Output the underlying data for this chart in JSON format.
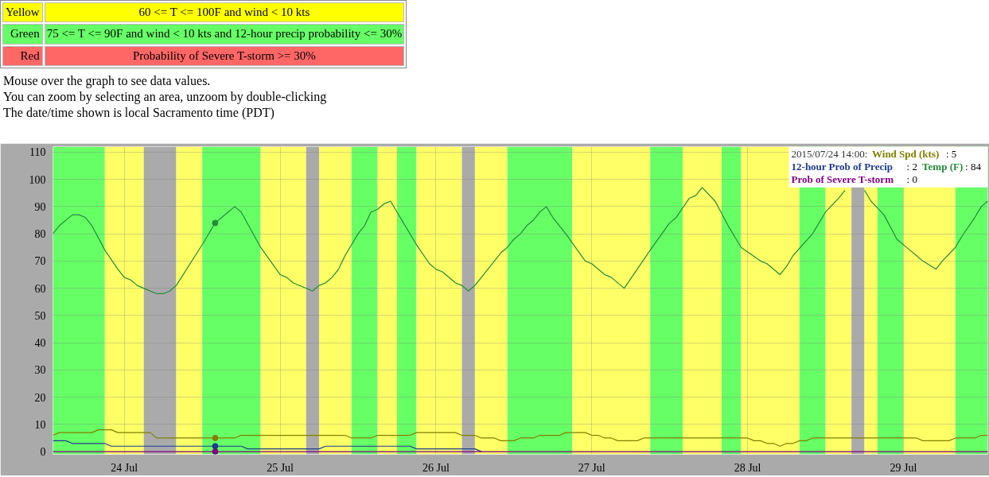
{
  "chart_data": {
    "type": "line",
    "annotations": [
      "Yellow",
      "60 <= T <= 100F and wind < 10 kts",
      "Green",
      "75 <= T <= 90F and wind < 10 kts and 12-hour precip probability <= 30%",
      "Red",
      "Probability of Severe T-storm >= 30%",
      "Mouse over the graph to see data values.",
      "You can zoom by selecting an area, unzoom by double-clicking",
      "The date/time shown is local Sacramento time (PDT)",
      "2015/07/24 14:00:",
      ": 5",
      ": 2",
      ": 84",
      ": 0"
    ],
    "xlim": [
      "2015-07-23T13:00",
      "2015-07-29T13:00"
    ],
    "xticks": [
      {
        "value": "2015-07-24",
        "label": "24 Jul"
      },
      {
        "value": "2015-07-25",
        "label": "25 Jul"
      },
      {
        "value": "2015-07-26",
        "label": "26 Jul"
      },
      {
        "value": "2015-07-27",
        "label": "27 Jul"
      },
      {
        "value": "2015-07-28",
        "label": "28 Jul"
      },
      {
        "value": "2015-07-29",
        "label": "29 Jul"
      }
    ],
    "ylim": [
      -1,
      112
    ],
    "yticks": [
      0,
      10,
      20,
      30,
      40,
      50,
      60,
      70,
      80,
      90,
      100,
      110
    ],
    "grid": true,
    "legend": "top right",
    "bands": [
      {
        "axis": "x",
        "from": "2015-07-23T13:00",
        "to": "2015-07-23T21:00",
        "color": "#66ff66"
      },
      {
        "axis": "x",
        "from": "2015-07-23T21:00",
        "to": "2015-07-24T03:00",
        "color": "#ffff66"
      },
      {
        "axis": "x",
        "from": "2015-07-24T03:00",
        "to": "2015-07-24T08:00",
        "color": "#aaaaaa"
      },
      {
        "axis": "x",
        "from": "2015-07-24T08:00",
        "to": "2015-07-24T12:00",
        "color": "#ffff66"
      },
      {
        "axis": "x",
        "from": "2015-07-24T12:00",
        "to": "2015-07-24T21:00",
        "color": "#66ff66"
      },
      {
        "axis": "x",
        "from": "2015-07-24T21:00",
        "to": "2015-07-25T04:00",
        "color": "#ffff66"
      },
      {
        "axis": "x",
        "from": "2015-07-25T04:00",
        "to": "2015-07-25T06:00",
        "color": "#aaaaaa"
      },
      {
        "axis": "x",
        "from": "2015-07-25T06:00",
        "to": "2015-07-25T11:00",
        "color": "#ffff66"
      },
      {
        "axis": "x",
        "from": "2015-07-25T11:00",
        "to": "2015-07-25T15:00",
        "color": "#66ff66"
      },
      {
        "axis": "x",
        "from": "2015-07-25T15:00",
        "to": "2015-07-25T18:00",
        "color": "#ffff66"
      },
      {
        "axis": "x",
        "from": "2015-07-25T18:00",
        "to": "2015-07-25T21:00",
        "color": "#66ff66"
      },
      {
        "axis": "x",
        "from": "2015-07-25T21:00",
        "to": "2015-07-26T04:00",
        "color": "#ffff66"
      },
      {
        "axis": "x",
        "from": "2015-07-26T04:00",
        "to": "2015-07-26T06:00",
        "color": "#aaaaaa"
      },
      {
        "axis": "x",
        "from": "2015-07-26T06:00",
        "to": "2015-07-26T11:00",
        "color": "#ffff66"
      },
      {
        "axis": "x",
        "from": "2015-07-26T11:00",
        "to": "2015-07-26T21:00",
        "color": "#66ff66"
      },
      {
        "axis": "x",
        "from": "2015-07-26T21:00",
        "to": "2015-07-27T09:00",
        "color": "#ffff66"
      },
      {
        "axis": "x",
        "from": "2015-07-27T09:00",
        "to": "2015-07-27T14:00",
        "color": "#66ff66"
      },
      {
        "axis": "x",
        "from": "2015-07-27T14:00",
        "to": "2015-07-27T20:00",
        "color": "#ffff66"
      },
      {
        "axis": "x",
        "from": "2015-07-27T20:00",
        "to": "2015-07-27T23:00",
        "color": "#66ff66"
      },
      {
        "axis": "x",
        "from": "2015-07-27T23:00",
        "to": "2015-07-28T08:00",
        "color": "#ffff66"
      },
      {
        "axis": "x",
        "from": "2015-07-28T08:00",
        "to": "2015-07-28T12:00",
        "color": "#66ff66"
      },
      {
        "axis": "x",
        "from": "2015-07-28T12:00",
        "to": "2015-07-28T16:00",
        "color": "#ffff66"
      },
      {
        "axis": "x",
        "from": "2015-07-28T16:00",
        "to": "2015-07-28T18:00",
        "color": "#aaaaaa"
      },
      {
        "axis": "x",
        "from": "2015-07-28T18:00",
        "to": "2015-07-28T20:00",
        "color": "#ffff66"
      },
      {
        "axis": "x",
        "from": "2015-07-28T20:00",
        "to": "2015-07-29T00:00",
        "color": "#66ff66"
      },
      {
        "axis": "x",
        "from": "2015-07-29T00:00",
        "to": "2015-07-29T08:00",
        "color": "#ffff66"
      },
      {
        "axis": "x",
        "from": "2015-07-29T08:00",
        "to": "2015-07-29T13:00",
        "color": "#66ff66"
      }
    ],
    "series": [
      {
        "name": "Wind Spd (kts)",
        "color": "#808000",
        "x": [
          "2015-07-23T13:00",
          "2015-07-23T14:00",
          "2015-07-23T19:00",
          "2015-07-23T20:00",
          "2015-07-23T22:00",
          "2015-07-23T23:00",
          "2015-07-24T04:00",
          "2015-07-24T05:00",
          "2015-07-24T14:00",
          "2015-07-24T17:00",
          "2015-07-24T18:00",
          "2015-07-25T10:00",
          "2015-07-25T11:00",
          "2015-07-25T14:00",
          "2015-07-25T15:00",
          "2015-07-25T20:00",
          "2015-07-25T21:00",
          "2015-07-26T03:00",
          "2015-07-26T04:00",
          "2015-07-26T06:00",
          "2015-07-26T07:00",
          "2015-07-26T09:00",
          "2015-07-26T10:00",
          "2015-07-26T12:00",
          "2015-07-26T13:00",
          "2015-07-26T15:00",
          "2015-07-26T16:00",
          "2015-07-26T19:00",
          "2015-07-26T20:00",
          "2015-07-26T23:00",
          "2015-07-27T00:00",
          "2015-07-27T01:00",
          "2015-07-27T02:00",
          "2015-07-27T03:00",
          "2015-07-27T04:00",
          "2015-07-27T07:00",
          "2015-07-27T08:00",
          "2015-07-28T00:00",
          "2015-07-28T01:00",
          "2015-07-28T02:00",
          "2015-07-28T03:00",
          "2015-07-28T04:00",
          "2015-07-28T05:00",
          "2015-07-28T06:00",
          "2015-07-28T07:00",
          "2015-07-28T08:00",
          "2015-07-28T09:00",
          "2015-07-28T10:00",
          "2015-07-29T02:00",
          "2015-07-29T03:00",
          "2015-07-29T07:00",
          "2015-07-29T08:00",
          "2015-07-29T11:00",
          "2015-07-29T12:00",
          "2015-07-29T13:00"
        ],
        "values": [
          6,
          7,
          7,
          8,
          8,
          7,
          7,
          5,
          5,
          5,
          6,
          6,
          5,
          5,
          6,
          6,
          7,
          7,
          6,
          6,
          5,
          5,
          4,
          4,
          5,
          5,
          6,
          6,
          7,
          7,
          6,
          6,
          5,
          5,
          4,
          4,
          5,
          5,
          4,
          4,
          3,
          3,
          2,
          3,
          3,
          4,
          4,
          5,
          5,
          4,
          4,
          5,
          5,
          6,
          6
        ]
      },
      {
        "name": "12-hour Prob of Precip",
        "color": "#1f3b8f",
        "x": [
          "2015-07-23T13:00",
          "2015-07-23T15:00",
          "2015-07-23T16:00",
          "2015-07-23T21:00",
          "2015-07-23T22:00",
          "2015-07-24T14:00",
          "2015-07-24T18:00",
          "2015-07-24T19:00",
          "2015-07-25T06:00",
          "2015-07-25T07:00",
          "2015-07-25T20:00",
          "2015-07-25T21:00",
          "2015-07-26T06:00",
          "2015-07-26T07:00"
        ],
        "values": [
          4,
          4,
          3,
          3,
          2,
          2,
          2,
          1,
          1,
          2,
          2,
          1,
          1,
          0
        ]
      },
      {
        "name": "Temp (F)",
        "color": "#238b3a",
        "x": [
          "2015-07-23T13:00",
          "2015-07-23T14:00",
          "2015-07-23T16:00",
          "2015-07-23T17:00",
          "2015-07-23T18:00",
          "2015-07-23T19:00",
          "2015-07-23T21:00",
          "2015-07-23T23:00",
          "2015-07-24T00:00",
          "2015-07-24T01:00",
          "2015-07-24T02:00",
          "2015-07-24T03:00",
          "2015-07-24T05:00",
          "2015-07-24T06:00",
          "2015-07-24T07:00",
          "2015-07-24T08:00",
          "2015-07-24T12:00",
          "2015-07-24T14:00",
          "2015-07-24T15:00",
          "2015-07-24T16:00",
          "2015-07-24T17:00",
          "2015-07-24T18:00",
          "2015-07-24T21:00",
          "2015-07-25T00:00",
          "2015-07-25T01:00",
          "2015-07-25T02:00",
          "2015-07-25T05:00",
          "2015-07-25T06:00",
          "2015-07-25T07:00",
          "2015-07-25T08:00",
          "2015-07-25T09:00",
          "2015-07-25T10:00",
          "2015-07-25T12:00",
          "2015-07-25T13:00",
          "2015-07-25T14:00",
          "2015-07-25T15:00",
          "2015-07-25T16:00",
          "2015-07-25T17:00",
          "2015-07-25T18:00",
          "2015-07-25T20:00",
          "2015-07-25T21:00",
          "2015-07-25T23:00",
          "2015-07-26T00:00",
          "2015-07-26T01:00",
          "2015-07-26T03:00",
          "2015-07-26T04:00",
          "2015-07-26T05:00",
          "2015-07-26T06:00",
          "2015-07-26T07:00",
          "2015-07-26T10:00",
          "2015-07-26T11:00",
          "2015-07-26T12:00",
          "2015-07-26T13:00",
          "2015-07-26T14:00",
          "2015-07-26T15:00",
          "2015-07-26T16:00",
          "2015-07-26T17:00",
          "2015-07-26T18:00",
          "2015-07-26T19:00",
          "2015-07-26T20:00",
          "2015-07-26T23:00",
          "2015-07-27T00:00",
          "2015-07-27T02:00",
          "2015-07-27T03:00",
          "2015-07-27T05:00",
          "2015-07-27T07:00",
          "2015-07-27T09:00",
          "2015-07-27T12:00",
          "2015-07-27T13:00",
          "2015-07-27T15:00",
          "2015-07-27T16:00",
          "2015-07-27T17:00",
          "2015-07-27T19:00",
          "2015-07-27T21:00",
          "2015-07-27T23:00",
          "2015-07-28T02:00",
          "2015-07-28T03:00",
          "2015-07-28T05:00",
          "2015-07-28T06:00",
          "2015-07-28T07:00",
          "2015-07-28T10:00",
          "2015-07-28T12:00",
          "2015-07-28T14:00",
          "2015-07-28T15:00",
          "2015-07-28T16:00",
          "2015-07-28T17:00",
          "2015-07-28T18:00",
          "2015-07-28T19:00",
          "2015-07-28T21:00",
          "2015-07-28T23:00",
          "2015-07-29T01:00",
          "2015-07-29T02:00",
          "2015-07-29T03:00",
          "2015-07-29T05:00",
          "2015-07-29T06:00",
          "2015-07-29T08:00",
          "2015-07-29T09:00",
          "2015-07-29T11:00",
          "2015-07-29T12:00",
          "2015-07-29T13:00"
        ],
        "values": [
          80,
          83,
          87,
          87,
          86,
          83,
          74,
          67,
          64,
          63,
          61,
          60,
          58,
          58,
          59,
          61,
          76,
          84,
          86,
          88,
          90,
          88,
          75,
          65,
          64,
          62,
          59,
          61,
          62,
          64,
          67,
          72,
          80,
          83,
          88,
          89,
          91,
          92,
          88,
          80,
          76,
          69,
          67,
          66,
          62,
          61,
          59,
          61,
          64,
          73,
          75,
          78,
          80,
          83,
          85,
          88,
          90,
          86,
          83,
          80,
          70,
          69,
          65,
          64,
          60,
          67,
          74,
          84,
          86,
          93,
          94,
          97,
          92,
          83,
          75,
          70,
          69,
          65,
          68,
          72,
          80,
          88,
          93,
          96,
          null,
          null,
          96,
          92,
          87,
          78,
          74,
          72,
          70,
          67,
          70,
          75,
          79,
          86,
          90,
          92
        ]
      },
      {
        "name": "Prob of Severe T-storm",
        "color": "#800080",
        "x": [
          "2015-07-23T13:00",
          "2015-07-24T14:00",
          "2015-07-29T13:00"
        ],
        "values": [
          0,
          0,
          0
        ]
      },
      {
        "type": "scatter",
        "x": [
          "2015-07-24T14:00",
          "2015-07-24T14:00",
          "2015-07-24T14:00",
          "2015-07-24T14:00"
        ],
        "values": [
          5,
          2,
          84,
          0
        ],
        "colors": [
          "#808000",
          "#1f3b8f",
          "#238b3a",
          "#800080"
        ]
      }
    ]
  }
}
